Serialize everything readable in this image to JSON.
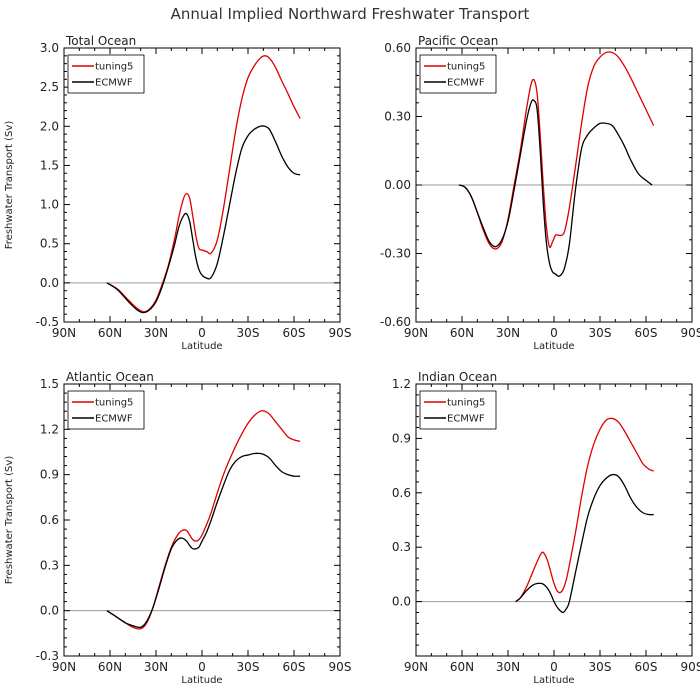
{
  "figure_title": "Annual Implied Northward Freshwater Transport",
  "colors": {
    "tuning5": "#dd0000",
    "ECMWF": "#000000",
    "zero_line": "#9a9a9a",
    "frame": "#000000"
  },
  "chart_data": [
    {
      "type": "line",
      "title": "Total Ocean",
      "xlabel": "Latitude",
      "ylabel": "Freshwater Transport (Sv)",
      "x_tick_labels": [
        "90N",
        "60N",
        "30N",
        "0",
        "30S",
        "60S",
        "90S"
      ],
      "x_ticks": [
        -90,
        -60,
        -30,
        0,
        30,
        60,
        90
      ],
      "xlim": [
        -90,
        90
      ],
      "ylim": [
        -0.5,
        3.0
      ],
      "y_ticks": [
        -0.5,
        0.0,
        0.5,
        1.0,
        1.5,
        2.0,
        2.5,
        3.0
      ],
      "y_tick_labels": [
        "-0.5",
        "0.0",
        "0.5",
        "1.0",
        "1.5",
        "2.0",
        "2.5",
        "3.0"
      ],
      "legend": "top-left",
      "reference_line": 0,
      "series": [
        {
          "name": "tuning5",
          "color": "#dd0000",
          "x": [
            -62,
            -55,
            -48,
            -42,
            -38,
            -34,
            -30,
            -26,
            -22,
            -18,
            -15,
            -12,
            -10,
            -8,
            -6,
            -4,
            -2,
            0,
            3,
            6,
            10,
            14,
            18,
            22,
            26,
            30,
            34,
            38,
            41,
            44,
            48,
            52,
            56,
            60,
            64
          ],
          "y": [
            0.0,
            -0.08,
            -0.22,
            -0.33,
            -0.37,
            -0.33,
            -0.22,
            -0.02,
            0.22,
            0.55,
            0.85,
            1.08,
            1.14,
            1.08,
            0.85,
            0.6,
            0.44,
            0.42,
            0.4,
            0.38,
            0.55,
            0.95,
            1.45,
            1.95,
            2.35,
            2.62,
            2.77,
            2.87,
            2.9,
            2.87,
            2.75,
            2.58,
            2.42,
            2.25,
            2.1
          ]
        },
        {
          "name": "ECMWF",
          "color": "#000000",
          "x": [
            -62,
            -55,
            -48,
            -42,
            -38,
            -34,
            -30,
            -26,
            -22,
            -18,
            -15,
            -12,
            -10,
            -8,
            -6,
            -4,
            -2,
            0,
            3,
            6,
            10,
            14,
            18,
            22,
            26,
            30,
            34,
            38,
            41,
            44,
            48,
            52,
            56,
            60,
            64
          ],
          "y": [
            0.0,
            -0.09,
            -0.24,
            -0.35,
            -0.38,
            -0.34,
            -0.24,
            -0.05,
            0.2,
            0.48,
            0.72,
            0.86,
            0.88,
            0.78,
            0.55,
            0.32,
            0.17,
            0.1,
            0.06,
            0.07,
            0.25,
            0.6,
            1.0,
            1.4,
            1.72,
            1.88,
            1.96,
            2.0,
            2.0,
            1.96,
            1.8,
            1.62,
            1.48,
            1.4,
            1.38
          ]
        }
      ]
    },
    {
      "type": "line",
      "title": "Pacific Ocean",
      "xlabel": "Latitude",
      "ylabel": "",
      "x_tick_labels": [
        "90N",
        "60N",
        "30N",
        "0",
        "30S",
        "60S",
        "90S"
      ],
      "x_ticks": [
        -90,
        -60,
        -30,
        0,
        30,
        60,
        90
      ],
      "xlim": [
        -90,
        90
      ],
      "ylim": [
        -0.6,
        0.6
      ],
      "y_ticks": [
        -0.6,
        -0.3,
        0.0,
        0.3,
        0.6
      ],
      "y_tick_labels": [
        "-0.60",
        "-0.30",
        "0.00",
        "0.30",
        "0.60"
      ],
      "legend": "top-left",
      "reference_line": 0,
      "series": [
        {
          "name": "tuning5",
          "color": "#dd0000",
          "x": [
            -62,
            -58,
            -54,
            -50,
            -46,
            -42,
            -38,
            -34,
            -30,
            -26,
            -22,
            -18,
            -15,
            -13,
            -11,
            -9,
            -7,
            -5,
            -3,
            -1,
            1,
            3,
            5,
            7,
            10,
            14,
            18,
            22,
            26,
            30,
            34,
            38,
            42,
            46,
            50,
            55,
            60,
            65
          ],
          "y": [
            0.0,
            -0.01,
            -0.05,
            -0.12,
            -0.2,
            -0.26,
            -0.28,
            -0.25,
            -0.15,
            0.0,
            0.15,
            0.33,
            0.44,
            0.46,
            0.4,
            0.22,
            0.0,
            -0.18,
            -0.27,
            -0.25,
            -0.22,
            -0.22,
            -0.22,
            -0.2,
            -0.1,
            0.08,
            0.27,
            0.43,
            0.52,
            0.56,
            0.58,
            0.58,
            0.56,
            0.52,
            0.47,
            0.4,
            0.33,
            0.26
          ]
        },
        {
          "name": "ECMWF",
          "color": "#000000",
          "x": [
            -62,
            -58,
            -54,
            -50,
            -46,
            -42,
            -38,
            -34,
            -30,
            -26,
            -22,
            -18,
            -15,
            -13,
            -11,
            -9,
            -7,
            -5,
            -3,
            -1,
            1,
            3,
            5,
            7,
            10,
            14,
            18,
            22,
            26,
            30,
            34,
            38,
            42,
            46,
            50,
            55,
            60,
            64
          ],
          "y": [
            0.0,
            -0.01,
            -0.05,
            -0.12,
            -0.19,
            -0.25,
            -0.27,
            -0.24,
            -0.16,
            -0.02,
            0.13,
            0.28,
            0.36,
            0.37,
            0.33,
            0.15,
            -0.08,
            -0.25,
            -0.34,
            -0.38,
            -0.39,
            -0.4,
            -0.39,
            -0.36,
            -0.26,
            -0.02,
            0.16,
            0.22,
            0.25,
            0.27,
            0.27,
            0.26,
            0.22,
            0.17,
            0.11,
            0.05,
            0.02,
            0.0
          ]
        }
      ]
    },
    {
      "type": "line",
      "title": "Atlantic Ocean",
      "xlabel": "Latitude",
      "ylabel": "Freshwater Transport (Sv)",
      "x_tick_labels": [
        "90N",
        "60N",
        "30N",
        "0",
        "30S",
        "60S",
        "90S"
      ],
      "x_ticks": [
        -90,
        -60,
        -30,
        0,
        30,
        60,
        90
      ],
      "xlim": [
        -90,
        90
      ],
      "ylim": [
        -0.3,
        1.5
      ],
      "y_ticks": [
        -0.3,
        0.0,
        0.3,
        0.6,
        0.9,
        1.2,
        1.5
      ],
      "y_tick_labels": [
        "-0.3",
        "0.0",
        "0.3",
        "0.6",
        "0.9",
        "1.2",
        "1.5"
      ],
      "legend": "top-left",
      "reference_line": 0,
      "series": [
        {
          "name": "tuning5",
          "color": "#dd0000",
          "x": [
            -62,
            -56,
            -50,
            -45,
            -40,
            -36,
            -32,
            -28,
            -24,
            -20,
            -16,
            -13,
            -10,
            -8,
            -6,
            -4,
            -2,
            0,
            3,
            6,
            10,
            14,
            18,
            22,
            26,
            30,
            34,
            38,
            41,
            44,
            48,
            52,
            56,
            60,
            64
          ],
          "y": [
            0.0,
            -0.04,
            -0.08,
            -0.11,
            -0.12,
            -0.08,
            0.02,
            0.16,
            0.3,
            0.42,
            0.5,
            0.53,
            0.53,
            0.5,
            0.47,
            0.46,
            0.47,
            0.5,
            0.57,
            0.65,
            0.78,
            0.9,
            1.0,
            1.09,
            1.17,
            1.24,
            1.29,
            1.32,
            1.32,
            1.3,
            1.25,
            1.2,
            1.15,
            1.13,
            1.12
          ]
        },
        {
          "name": "ECMWF",
          "color": "#000000",
          "x": [
            -62,
            -56,
            -50,
            -45,
            -40,
            -36,
            -32,
            -28,
            -24,
            -20,
            -16,
            -13,
            -10,
            -8,
            -6,
            -4,
            -2,
            0,
            3,
            6,
            10,
            14,
            18,
            22,
            26,
            30,
            34,
            38,
            41,
            44,
            48,
            52,
            56,
            60,
            64
          ],
          "y": [
            0.0,
            -0.04,
            -0.08,
            -0.1,
            -0.11,
            -0.07,
            0.02,
            0.15,
            0.29,
            0.41,
            0.47,
            0.48,
            0.46,
            0.43,
            0.41,
            0.41,
            0.42,
            0.46,
            0.52,
            0.6,
            0.72,
            0.83,
            0.93,
            0.99,
            1.02,
            1.03,
            1.04,
            1.04,
            1.03,
            1.01,
            0.96,
            0.92,
            0.9,
            0.89,
            0.89
          ]
        }
      ]
    },
    {
      "type": "line",
      "title": "Indian Ocean",
      "xlabel": "Latitude",
      "ylabel": "",
      "x_tick_labels": [
        "90N",
        "60N",
        "30N",
        "0",
        "30S",
        "60S",
        "90S"
      ],
      "x_ticks": [
        -90,
        -60,
        -30,
        0,
        30,
        60,
        90
      ],
      "xlim": [
        -90,
        90
      ],
      "ylim": [
        -0.3,
        1.2
      ],
      "y_ticks": [
        -0.3,
        0.0,
        0.3,
        0.6,
        0.9,
        1.2
      ],
      "y_tick_labels": [
        "",
        "0.0",
        "0.3",
        "0.6",
        "0.9",
        "1.2"
      ],
      "legend": "top-left",
      "reference_line": 0,
      "series": [
        {
          "name": "tuning5",
          "color": "#dd0000",
          "x": [
            -25,
            -22,
            -18,
            -14,
            -11,
            -8,
            -6,
            -4,
            -2,
            0,
            2,
            4,
            6,
            8,
            10,
            14,
            18,
            22,
            26,
            30,
            34,
            38,
            42,
            46,
            50,
            54,
            58,
            62,
            65
          ],
          "y": [
            0.0,
            0.02,
            0.08,
            0.16,
            0.22,
            0.27,
            0.26,
            0.22,
            0.16,
            0.1,
            0.06,
            0.05,
            0.07,
            0.12,
            0.2,
            0.38,
            0.58,
            0.75,
            0.87,
            0.95,
            1.0,
            1.01,
            0.99,
            0.94,
            0.88,
            0.82,
            0.76,
            0.73,
            0.72
          ]
        },
        {
          "name": "ECMWF",
          "color": "#000000",
          "x": [
            -25,
            -22,
            -18,
            -14,
            -11,
            -8,
            -6,
            -4,
            -2,
            0,
            2,
            4,
            6,
            8,
            10,
            14,
            18,
            22,
            26,
            30,
            34,
            38,
            42,
            46,
            50,
            54,
            58,
            62,
            65
          ],
          "y": [
            0.0,
            0.02,
            0.06,
            0.09,
            0.1,
            0.1,
            0.09,
            0.07,
            0.04,
            0.0,
            -0.03,
            -0.05,
            -0.06,
            -0.04,
            0.0,
            0.16,
            0.32,
            0.47,
            0.57,
            0.64,
            0.68,
            0.7,
            0.69,
            0.64,
            0.57,
            0.52,
            0.49,
            0.48,
            0.48
          ]
        }
      ]
    }
  ]
}
